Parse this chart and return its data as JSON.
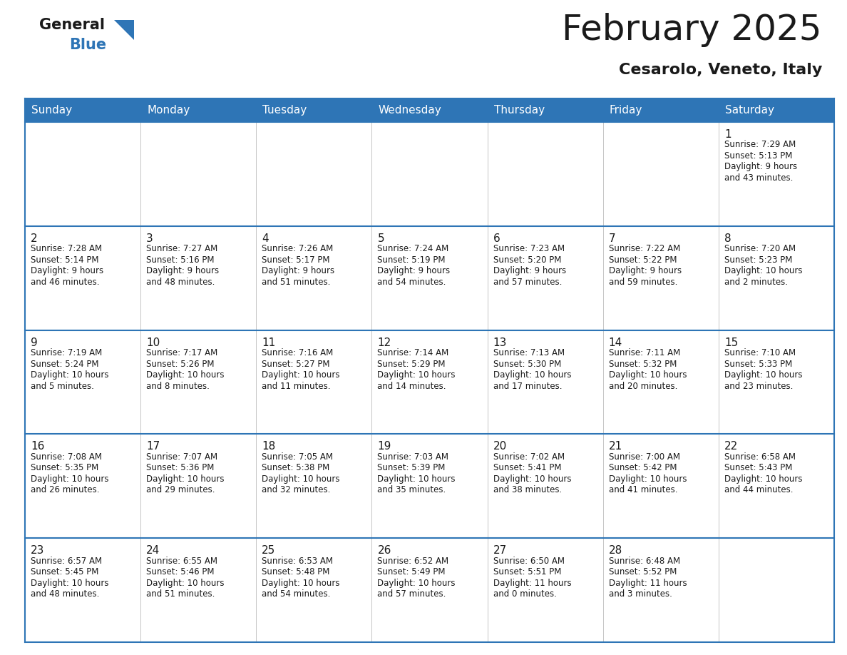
{
  "title": "February 2025",
  "subtitle": "Cesarolo, Veneto, Italy",
  "header_bg": "#2E75B6",
  "header_text_color": "#FFFFFF",
  "cell_bg": "#FFFFFF",
  "border_color": "#2E75B6",
  "row_border_color": "#2E75B6",
  "days_of_week": [
    "Sunday",
    "Monday",
    "Tuesday",
    "Wednesday",
    "Thursday",
    "Friday",
    "Saturday"
  ],
  "calendar_data": [
    [
      null,
      null,
      null,
      null,
      null,
      null,
      {
        "day": "1",
        "sunrise": "7:29 AM",
        "sunset": "5:13 PM",
        "daylight_line1": "Daylight: 9 hours",
        "daylight_line2": "and 43 minutes."
      }
    ],
    [
      {
        "day": "2",
        "sunrise": "7:28 AM",
        "sunset": "5:14 PM",
        "daylight_line1": "Daylight: 9 hours",
        "daylight_line2": "and 46 minutes."
      },
      {
        "day": "3",
        "sunrise": "7:27 AM",
        "sunset": "5:16 PM",
        "daylight_line1": "Daylight: 9 hours",
        "daylight_line2": "and 48 minutes."
      },
      {
        "day": "4",
        "sunrise": "7:26 AM",
        "sunset": "5:17 PM",
        "daylight_line1": "Daylight: 9 hours",
        "daylight_line2": "and 51 minutes."
      },
      {
        "day": "5",
        "sunrise": "7:24 AM",
        "sunset": "5:19 PM",
        "daylight_line1": "Daylight: 9 hours",
        "daylight_line2": "and 54 minutes."
      },
      {
        "day": "6",
        "sunrise": "7:23 AM",
        "sunset": "5:20 PM",
        "daylight_line1": "Daylight: 9 hours",
        "daylight_line2": "and 57 minutes."
      },
      {
        "day": "7",
        "sunrise": "7:22 AM",
        "sunset": "5:22 PM",
        "daylight_line1": "Daylight: 9 hours",
        "daylight_line2": "and 59 minutes."
      },
      {
        "day": "8",
        "sunrise": "7:20 AM",
        "sunset": "5:23 PM",
        "daylight_line1": "Daylight: 10 hours",
        "daylight_line2": "and 2 minutes."
      }
    ],
    [
      {
        "day": "9",
        "sunrise": "7:19 AM",
        "sunset": "5:24 PM",
        "daylight_line1": "Daylight: 10 hours",
        "daylight_line2": "and 5 minutes."
      },
      {
        "day": "10",
        "sunrise": "7:17 AM",
        "sunset": "5:26 PM",
        "daylight_line1": "Daylight: 10 hours",
        "daylight_line2": "and 8 minutes."
      },
      {
        "day": "11",
        "sunrise": "7:16 AM",
        "sunset": "5:27 PM",
        "daylight_line1": "Daylight: 10 hours",
        "daylight_line2": "and 11 minutes."
      },
      {
        "day": "12",
        "sunrise": "7:14 AM",
        "sunset": "5:29 PM",
        "daylight_line1": "Daylight: 10 hours",
        "daylight_line2": "and 14 minutes."
      },
      {
        "day": "13",
        "sunrise": "7:13 AM",
        "sunset": "5:30 PM",
        "daylight_line1": "Daylight: 10 hours",
        "daylight_line2": "and 17 minutes."
      },
      {
        "day": "14",
        "sunrise": "7:11 AM",
        "sunset": "5:32 PM",
        "daylight_line1": "Daylight: 10 hours",
        "daylight_line2": "and 20 minutes."
      },
      {
        "day": "15",
        "sunrise": "7:10 AM",
        "sunset": "5:33 PM",
        "daylight_line1": "Daylight: 10 hours",
        "daylight_line2": "and 23 minutes."
      }
    ],
    [
      {
        "day": "16",
        "sunrise": "7:08 AM",
        "sunset": "5:35 PM",
        "daylight_line1": "Daylight: 10 hours",
        "daylight_line2": "and 26 minutes."
      },
      {
        "day": "17",
        "sunrise": "7:07 AM",
        "sunset": "5:36 PM",
        "daylight_line1": "Daylight: 10 hours",
        "daylight_line2": "and 29 minutes."
      },
      {
        "day": "18",
        "sunrise": "7:05 AM",
        "sunset": "5:38 PM",
        "daylight_line1": "Daylight: 10 hours",
        "daylight_line2": "and 32 minutes."
      },
      {
        "day": "19",
        "sunrise": "7:03 AM",
        "sunset": "5:39 PM",
        "daylight_line1": "Daylight: 10 hours",
        "daylight_line2": "and 35 minutes."
      },
      {
        "day": "20",
        "sunrise": "7:02 AM",
        "sunset": "5:41 PM",
        "daylight_line1": "Daylight: 10 hours",
        "daylight_line2": "and 38 minutes."
      },
      {
        "day": "21",
        "sunrise": "7:00 AM",
        "sunset": "5:42 PM",
        "daylight_line1": "Daylight: 10 hours",
        "daylight_line2": "and 41 minutes."
      },
      {
        "day": "22",
        "sunrise": "6:58 AM",
        "sunset": "5:43 PM",
        "daylight_line1": "Daylight: 10 hours",
        "daylight_line2": "and 44 minutes."
      }
    ],
    [
      {
        "day": "23",
        "sunrise": "6:57 AM",
        "sunset": "5:45 PM",
        "daylight_line1": "Daylight: 10 hours",
        "daylight_line2": "and 48 minutes."
      },
      {
        "day": "24",
        "sunrise": "6:55 AM",
        "sunset": "5:46 PM",
        "daylight_line1": "Daylight: 10 hours",
        "daylight_line2": "and 51 minutes."
      },
      {
        "day": "25",
        "sunrise": "6:53 AM",
        "sunset": "5:48 PM",
        "daylight_line1": "Daylight: 10 hours",
        "daylight_line2": "and 54 minutes."
      },
      {
        "day": "26",
        "sunrise": "6:52 AM",
        "sunset": "5:49 PM",
        "daylight_line1": "Daylight: 10 hours",
        "daylight_line2": "and 57 minutes."
      },
      {
        "day": "27",
        "sunrise": "6:50 AM",
        "sunset": "5:51 PM",
        "daylight_line1": "Daylight: 11 hours",
        "daylight_line2": "and 0 minutes."
      },
      {
        "day": "28",
        "sunrise": "6:48 AM",
        "sunset": "5:52 PM",
        "daylight_line1": "Daylight: 11 hours",
        "daylight_line2": "and 3 minutes."
      },
      null
    ]
  ],
  "logo_text_general": "General",
  "logo_text_blue": "Blue",
  "logo_color_general": "#1a1a1a",
  "logo_color_blue": "#2E75B6",
  "logo_triangle_color": "#2E75B6",
  "title_fontsize": 36,
  "subtitle_fontsize": 16,
  "header_fontsize": 11,
  "day_num_fontsize": 11,
  "cell_text_fontsize": 8.5
}
